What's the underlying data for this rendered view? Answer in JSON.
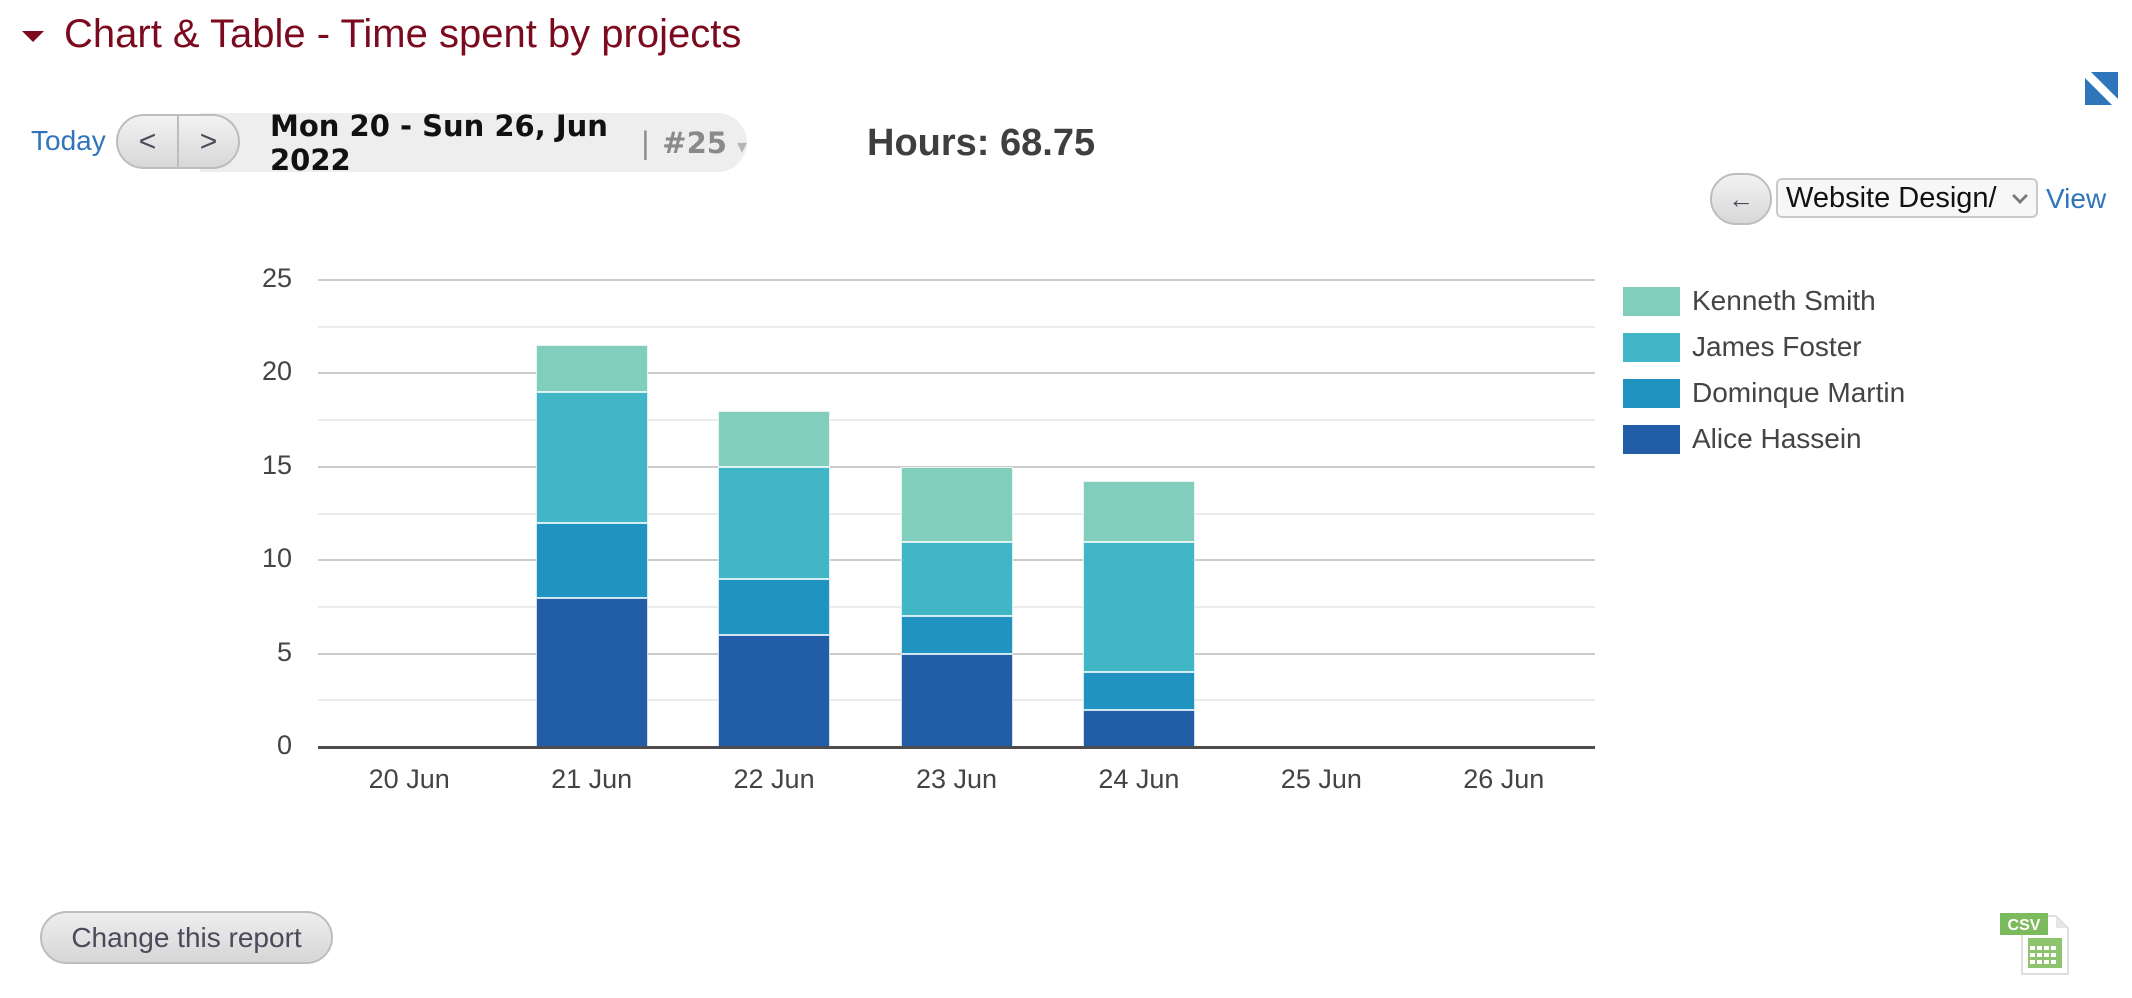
{
  "header": {
    "title": "Chart & Table - Time spent by projects",
    "collapse_icon": "triangle-down-icon",
    "fullscreen_icon": "expand-corner-icon"
  },
  "toolbar": {
    "today_label": "Today",
    "prev_label": "<",
    "next_label": ">",
    "date_range": "Mon 20 - Sun 26, Jun 2022",
    "separator": "|",
    "week_number": "#25",
    "week_caret": "▾",
    "hours_label": "Hours: 68.75"
  },
  "filter": {
    "back_label": "←",
    "project_selected": "Website Design/",
    "view_label": "View"
  },
  "footer": {
    "change_report_label": "Change this report",
    "csv_label": "CSV"
  },
  "colors": {
    "title": "#7b0a1e",
    "link": "#2f75bb",
    "Kenneth Smith": "#81cebd",
    "James Foster": "#41b6c6",
    "Dominque Martin": "#2093c1",
    "Alice Hassein": "#225ea8"
  },
  "chart_data": {
    "type": "bar",
    "stacked": true,
    "title": "",
    "xlabel": "",
    "ylabel": "",
    "ylim": [
      0,
      25
    ],
    "yticks": [
      0,
      5,
      10,
      15,
      20,
      25
    ],
    "grid": true,
    "legend_position": "right",
    "categories": [
      "20 Jun",
      "21 Jun",
      "22 Jun",
      "23 Jun",
      "24 Jun",
      "25 Jun",
      "26 Jun"
    ],
    "series": [
      {
        "name": "Alice Hassein",
        "color": "#225ea8",
        "values": [
          0,
          8,
          6,
          5,
          2,
          0,
          0
        ]
      },
      {
        "name": "Dominque Martin",
        "color": "#2093c1",
        "values": [
          0,
          4,
          3,
          2,
          2,
          0,
          0
        ]
      },
      {
        "name": "James Foster",
        "color": "#41b6c6",
        "values": [
          0,
          7,
          6,
          4,
          7,
          0,
          0
        ]
      },
      {
        "name": "Kenneth Smith",
        "color": "#81cebd",
        "values": [
          0,
          2.5,
          3,
          4,
          3.25,
          0,
          0
        ]
      }
    ],
    "legend": [
      "Kenneth Smith",
      "James Foster",
      "Dominque Martin",
      "Alice Hassein"
    ],
    "total": 68.75
  }
}
